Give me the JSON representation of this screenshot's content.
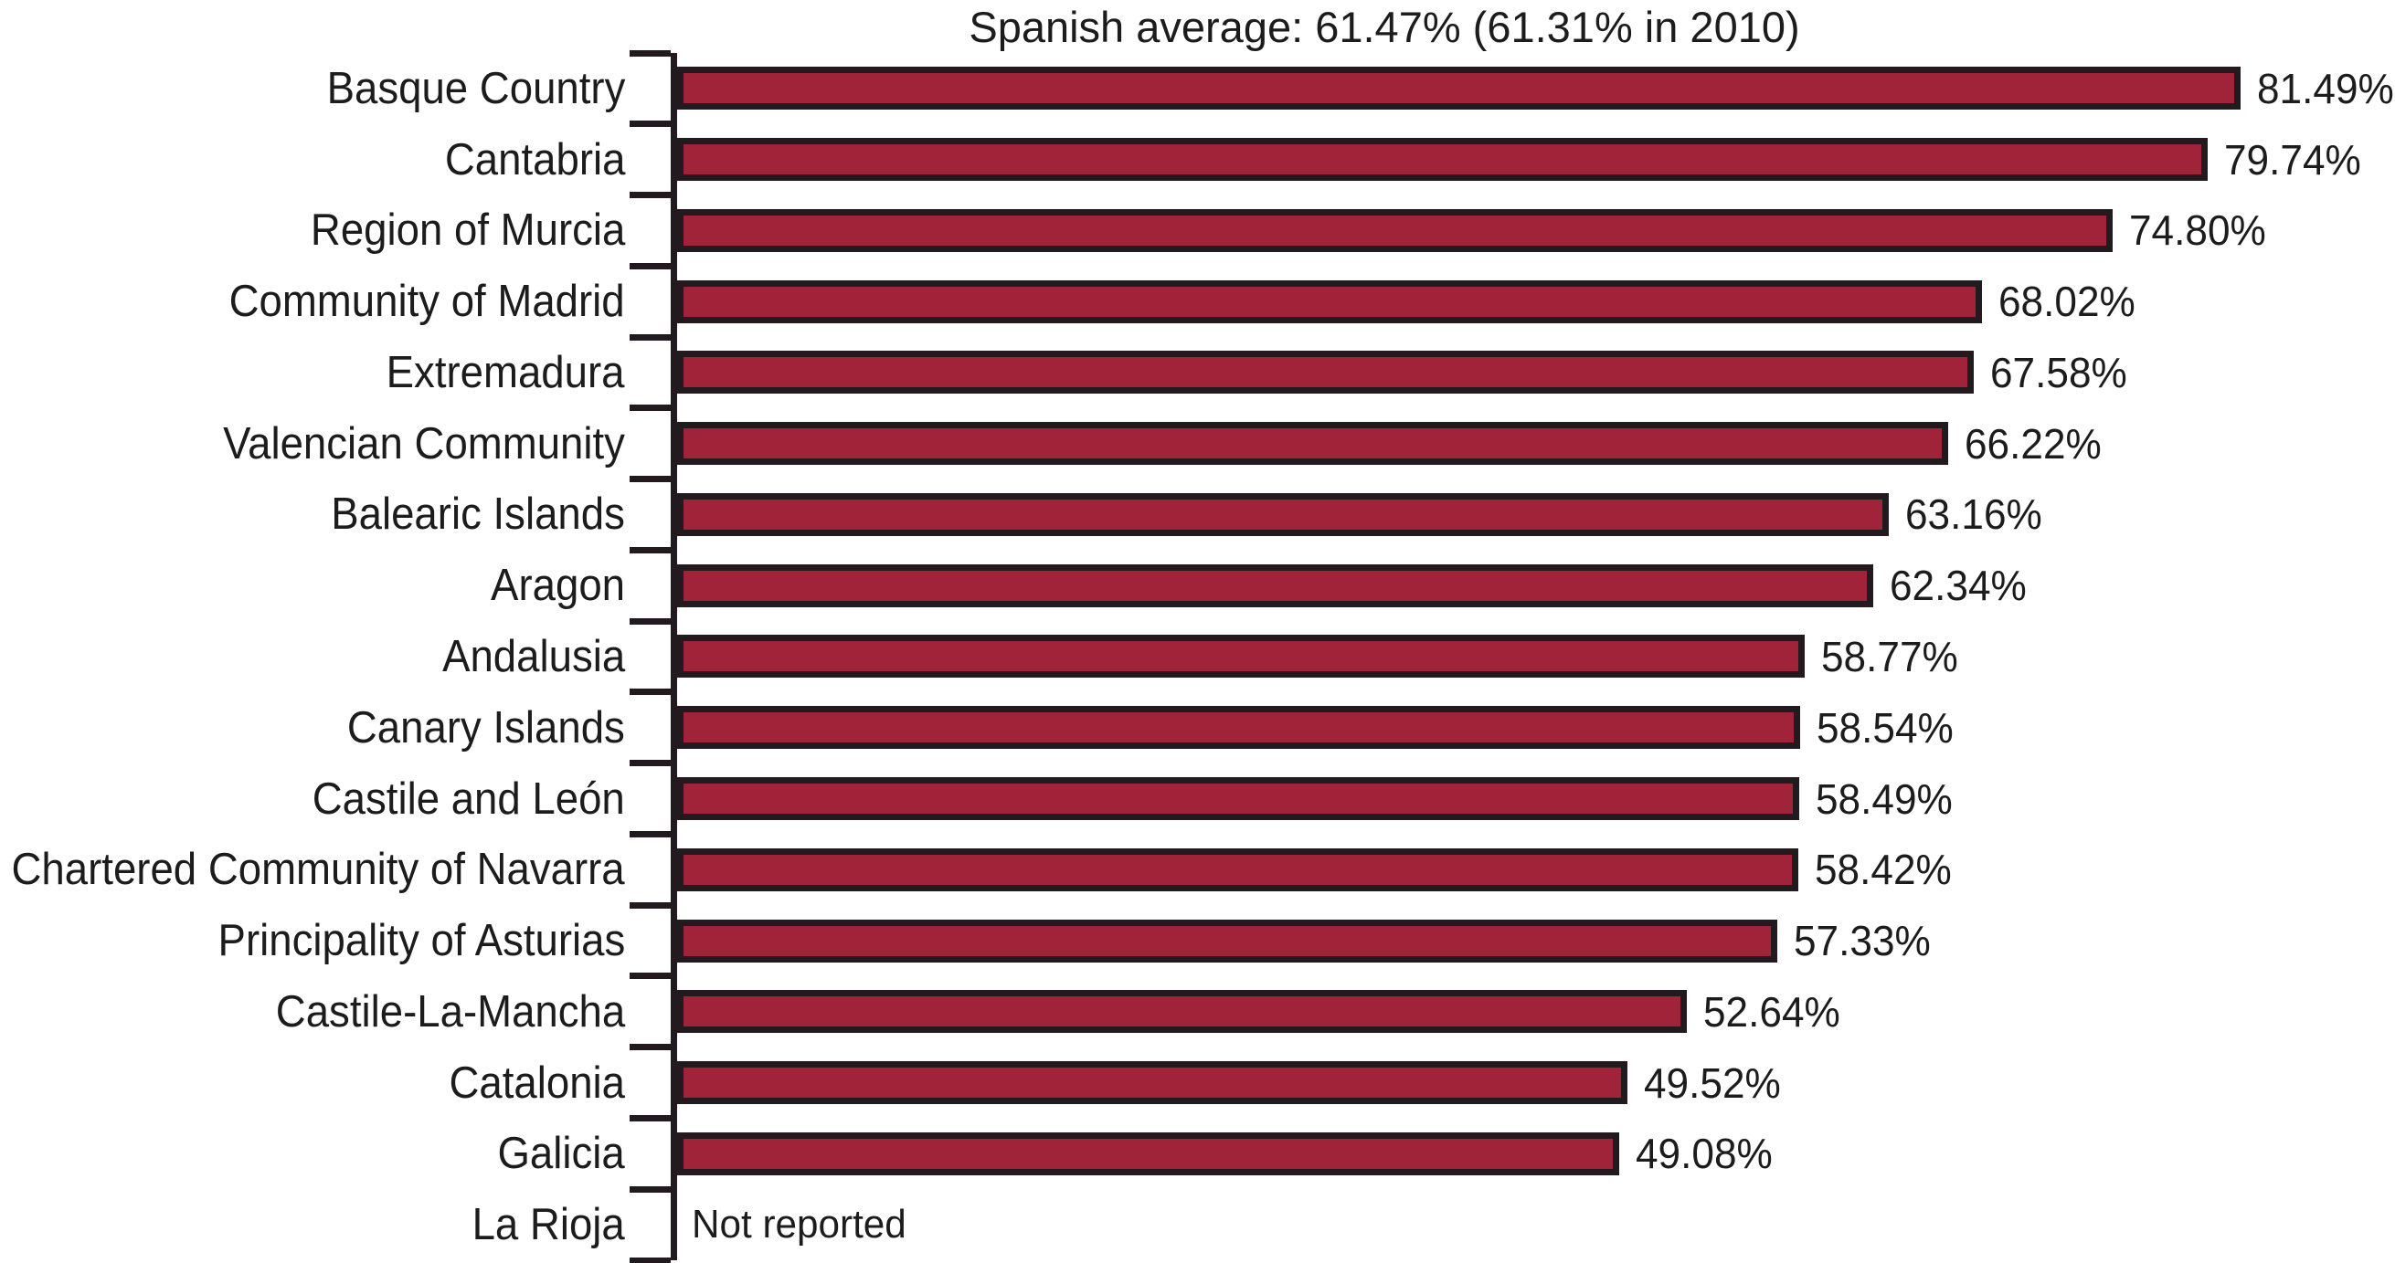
{
  "chart_data": {
    "type": "bar",
    "orientation": "horizontal",
    "title": "Spanish average: 61.47% (61.31% in 2010)",
    "categories": [
      "Basque Country",
      "Cantabria",
      "Region of Murcia",
      "Community of Madrid",
      "Extremadura",
      "Valencian Community",
      "Balearic Islands",
      "Aragon",
      "Andalusia",
      "Canary Islands",
      "Castile and León",
      "Chartered Community of Navarra",
      "Principality of Asturias",
      "Castile-La-Mancha",
      "Catalonia",
      "Galicia",
      "La Rioja"
    ],
    "values": [
      81.49,
      79.74,
      74.8,
      68.02,
      67.58,
      66.22,
      63.16,
      62.34,
      58.77,
      58.54,
      58.49,
      58.42,
      57.33,
      52.64,
      49.52,
      49.08,
      null
    ],
    "value_labels": [
      "81.49%",
      "79.74%",
      "74.80%",
      "68.02%",
      "67.58%",
      "66.22%",
      "63.16%",
      "62.34%",
      "58.77%",
      "58.54%",
      "58.49%",
      "58.42%",
      "57.33%",
      "52.64%",
      "49.52%",
      "49.08%",
      "Not reported"
    ],
    "not_reported_label": "Not reported",
    "xlabel": "",
    "ylabel": "",
    "xlim": [
      0,
      85
    ],
    "grid": false,
    "legend": "none",
    "bar_color": "#a12339",
    "bar_border_color": "#231a20",
    "axis_color": "#231a20",
    "text_color": "#1c1c1c"
  }
}
